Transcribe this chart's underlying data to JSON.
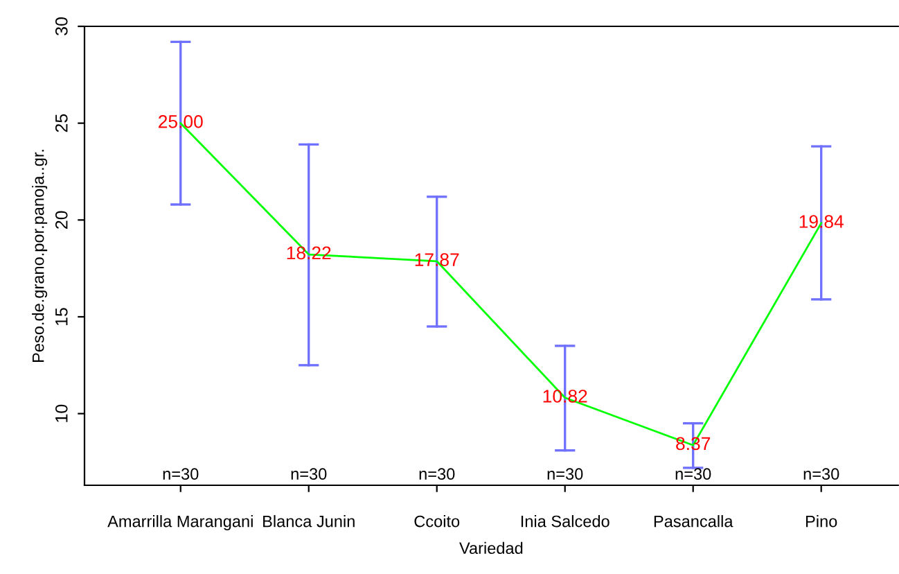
{
  "chart_data": {
    "type": "line",
    "xlabel": "Variedad",
    "ylabel": "Peso.de.grano.por.panoja..gr.",
    "categories": [
      "Amarrilla Marangani",
      "Blanca Junin",
      "Ccoito",
      "Inia Salcedo",
      "Pasancalla",
      "Pino"
    ],
    "series": [
      {
        "color": "#00ff00",
        "values": [
          25.0,
          18.22,
          17.87,
          10.82,
          8.37,
          19.84
        ],
        "errors": [
          [
            20.8,
            29.2
          ],
          [
            12.5,
            23.9
          ],
          [
            14.5,
            21.2
          ],
          [
            8.1,
            13.5
          ],
          [
            7.2,
            9.5
          ],
          [
            15.9,
            23.8
          ]
        ],
        "value_labels": [
          "25.00",
          "18.22",
          "17.87",
          "10.82",
          "8.37",
          "19.84"
        ]
      }
    ],
    "ylim": [
      6.3,
      30
    ],
    "yticks": [
      10,
      15,
      20,
      25,
      30
    ],
    "grid": false,
    "legend": false,
    "marker": "none",
    "line_style": "solid",
    "annotations": [
      "n=30",
      "n=30",
      "n=30",
      "n=30",
      "n=30",
      "n=30"
    ]
  }
}
